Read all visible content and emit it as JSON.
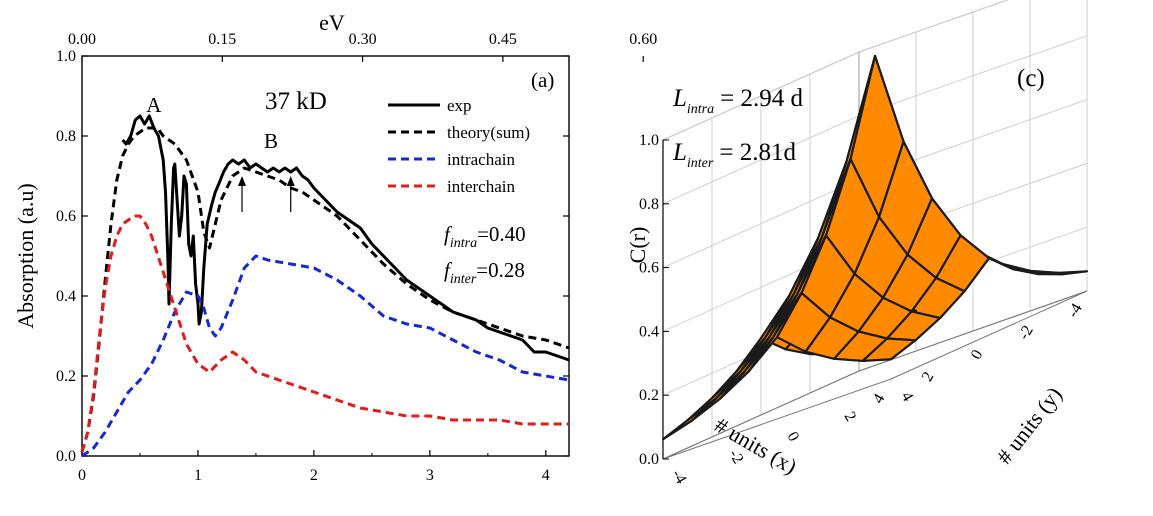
{
  "chart_data": [
    {
      "type": "line",
      "panel_label": "(a)",
      "sample_label": "37 kD",
      "xlabel": "",
      "ylabel": "Absorption (a.u)",
      "top_axis_label": "eV",
      "xlim": [
        0,
        4.2
      ],
      "ylim": [
        0.0,
        1.0
      ],
      "x_ticks": [
        "0",
        "1",
        "2",
        "3",
        "4"
      ],
      "y_ticks": [
        "0.0",
        "0.2",
        "0.4",
        "0.6",
        "0.8",
        "1.0"
      ],
      "top_ticks": [
        "0.00",
        "0.15",
        "0.30",
        "0.45",
        "0.60"
      ],
      "top_tick_x": [
        0.0,
        1.21,
        2.42,
        3.63,
        4.84
      ],
      "peak_labels": [
        {
          "text": "A",
          "x": 0.62,
          "y": 0.83
        },
        {
          "text": "B",
          "x": 1.63,
          "y": 0.74
        }
      ],
      "arrows_x": [
        1.38,
        1.8
      ],
      "fit_params": {
        "f_intra_symbol": "f",
        "f_intra_sub": "intra",
        "f_intra_value": "=0.40",
        "f_inter_symbol": "f",
        "f_inter_sub": "inter",
        "f_inter_value": "=0.28"
      },
      "legend_position": "top-right",
      "series": [
        {
          "name": "exp",
          "color": "#000000",
          "dash": "solid",
          "x": [
            0.35,
            0.38,
            0.42,
            0.46,
            0.5,
            0.54,
            0.58,
            0.62,
            0.66,
            0.7,
            0.72,
            0.74,
            0.75,
            0.77,
            0.79,
            0.8,
            0.82,
            0.84,
            0.86,
            0.88,
            0.9,
            0.92,
            0.94,
            0.96,
            0.98,
            1.0,
            1.01,
            1.03,
            1.05,
            1.08,
            1.12,
            1.15,
            1.18,
            1.22,
            1.26,
            1.3,
            1.35,
            1.4,
            1.45,
            1.5,
            1.55,
            1.6,
            1.65,
            1.7,
            1.75,
            1.8,
            1.85,
            1.9,
            1.95,
            2.0,
            2.1,
            2.2,
            2.3,
            2.4,
            2.5,
            2.6,
            2.7,
            2.8,
            2.9,
            3.0,
            3.1,
            3.2,
            3.3,
            3.4,
            3.5,
            3.6,
            3.7,
            3.8,
            3.9,
            4.0,
            4.1,
            4.2
          ],
          "y": [
            0.79,
            0.78,
            0.8,
            0.84,
            0.85,
            0.83,
            0.85,
            0.82,
            0.8,
            0.74,
            0.66,
            0.5,
            0.38,
            0.58,
            0.72,
            0.73,
            0.64,
            0.55,
            0.6,
            0.7,
            0.68,
            0.53,
            0.5,
            0.55,
            0.43,
            0.38,
            0.33,
            0.36,
            0.47,
            0.58,
            0.63,
            0.66,
            0.68,
            0.71,
            0.73,
            0.74,
            0.73,
            0.74,
            0.72,
            0.73,
            0.72,
            0.71,
            0.72,
            0.71,
            0.72,
            0.71,
            0.72,
            0.7,
            0.69,
            0.67,
            0.64,
            0.61,
            0.59,
            0.57,
            0.53,
            0.5,
            0.47,
            0.44,
            0.42,
            0.4,
            0.38,
            0.36,
            0.35,
            0.34,
            0.32,
            0.31,
            0.3,
            0.29,
            0.26,
            0.26,
            0.25,
            0.24
          ]
        },
        {
          "name": "theory(sum)",
          "color": "#000000",
          "dash": "8,5",
          "x": [
            0.0,
            0.05,
            0.1,
            0.15,
            0.2,
            0.25,
            0.3,
            0.35,
            0.4,
            0.45,
            0.5,
            0.55,
            0.6,
            0.65,
            0.7,
            0.8,
            0.9,
            1.0,
            1.05,
            1.1,
            1.15,
            1.2,
            1.3,
            1.4,
            1.5,
            1.6,
            1.7,
            1.8,
            1.9,
            2.0,
            2.2,
            2.4,
            2.6,
            2.8,
            3.0,
            3.2,
            3.4,
            3.6,
            3.8,
            4.0,
            4.2
          ],
          "y": [
            0.01,
            0.06,
            0.15,
            0.29,
            0.44,
            0.58,
            0.69,
            0.75,
            0.78,
            0.8,
            0.81,
            0.82,
            0.82,
            0.82,
            0.8,
            0.78,
            0.74,
            0.66,
            0.56,
            0.52,
            0.58,
            0.64,
            0.7,
            0.72,
            0.71,
            0.7,
            0.69,
            0.67,
            0.66,
            0.64,
            0.6,
            0.54,
            0.48,
            0.43,
            0.39,
            0.36,
            0.34,
            0.32,
            0.3,
            0.29,
            0.27
          ]
        },
        {
          "name": "intrachain",
          "color": "#1428d4",
          "dash": "8,5",
          "x": [
            0.0,
            0.1,
            0.2,
            0.3,
            0.4,
            0.5,
            0.6,
            0.7,
            0.8,
            0.9,
            1.0,
            1.05,
            1.1,
            1.15,
            1.2,
            1.3,
            1.4,
            1.5,
            1.6,
            1.8,
            2.0,
            2.2,
            2.4,
            2.6,
            2.8,
            3.0,
            3.2,
            3.4,
            3.6,
            3.8,
            4.0,
            4.2
          ],
          "y": [
            0.0,
            0.02,
            0.06,
            0.11,
            0.16,
            0.19,
            0.23,
            0.29,
            0.36,
            0.41,
            0.4,
            0.37,
            0.32,
            0.3,
            0.32,
            0.39,
            0.47,
            0.5,
            0.49,
            0.48,
            0.47,
            0.44,
            0.4,
            0.35,
            0.33,
            0.32,
            0.29,
            0.26,
            0.24,
            0.21,
            0.2,
            0.19
          ]
        },
        {
          "name": "interchain",
          "color": "#e21b1b",
          "dash": "8,5",
          "x": [
            0.0,
            0.05,
            0.1,
            0.15,
            0.2,
            0.25,
            0.3,
            0.35,
            0.4,
            0.45,
            0.5,
            0.55,
            0.6,
            0.7,
            0.8,
            0.9,
            1.0,
            1.1,
            1.2,
            1.3,
            1.4,
            1.5,
            1.6,
            1.8,
            2.0,
            2.2,
            2.4,
            2.6,
            2.8,
            3.0,
            3.2,
            3.4,
            3.6,
            3.8,
            4.0,
            4.2
          ],
          "y": [
            0.01,
            0.06,
            0.16,
            0.3,
            0.42,
            0.5,
            0.55,
            0.58,
            0.59,
            0.6,
            0.6,
            0.58,
            0.55,
            0.46,
            0.37,
            0.28,
            0.23,
            0.21,
            0.24,
            0.26,
            0.24,
            0.21,
            0.2,
            0.18,
            0.16,
            0.14,
            0.12,
            0.11,
            0.1,
            0.1,
            0.09,
            0.09,
            0.09,
            0.08,
            0.08,
            0.08
          ]
        }
      ]
    },
    {
      "type": "surface",
      "panel_label": "(c)",
      "zlabel": "C(r)",
      "xlabel": "# units (x)",
      "ylabel": "# units (y)",
      "zlim": [
        0.0,
        1.0
      ],
      "z_ticks": [
        "0.0",
        "0.2",
        "0.4",
        "0.6",
        "0.8",
        "1.0"
      ],
      "x_ticks": [
        "-4",
        "-2",
        "0",
        "2",
        "4"
      ],
      "y_ticks": [
        "-4",
        "-2",
        "0",
        "2",
        "4"
      ],
      "surface_color": "#ff8a00",
      "grid_range": [
        -4,
        4
      ],
      "grid_step": 1,
      "annotations": {
        "l_intra_symbol": "L",
        "l_intra_sub": "intra",
        "l_intra_value": "= 2.94 d",
        "l_inter_symbol": "L",
        "l_inter_sub": "inter",
        "l_inter_value": "= 2.81d"
      },
      "correlation_lengths": {
        "intra": 2.94,
        "inter": 2.81
      }
    }
  ]
}
